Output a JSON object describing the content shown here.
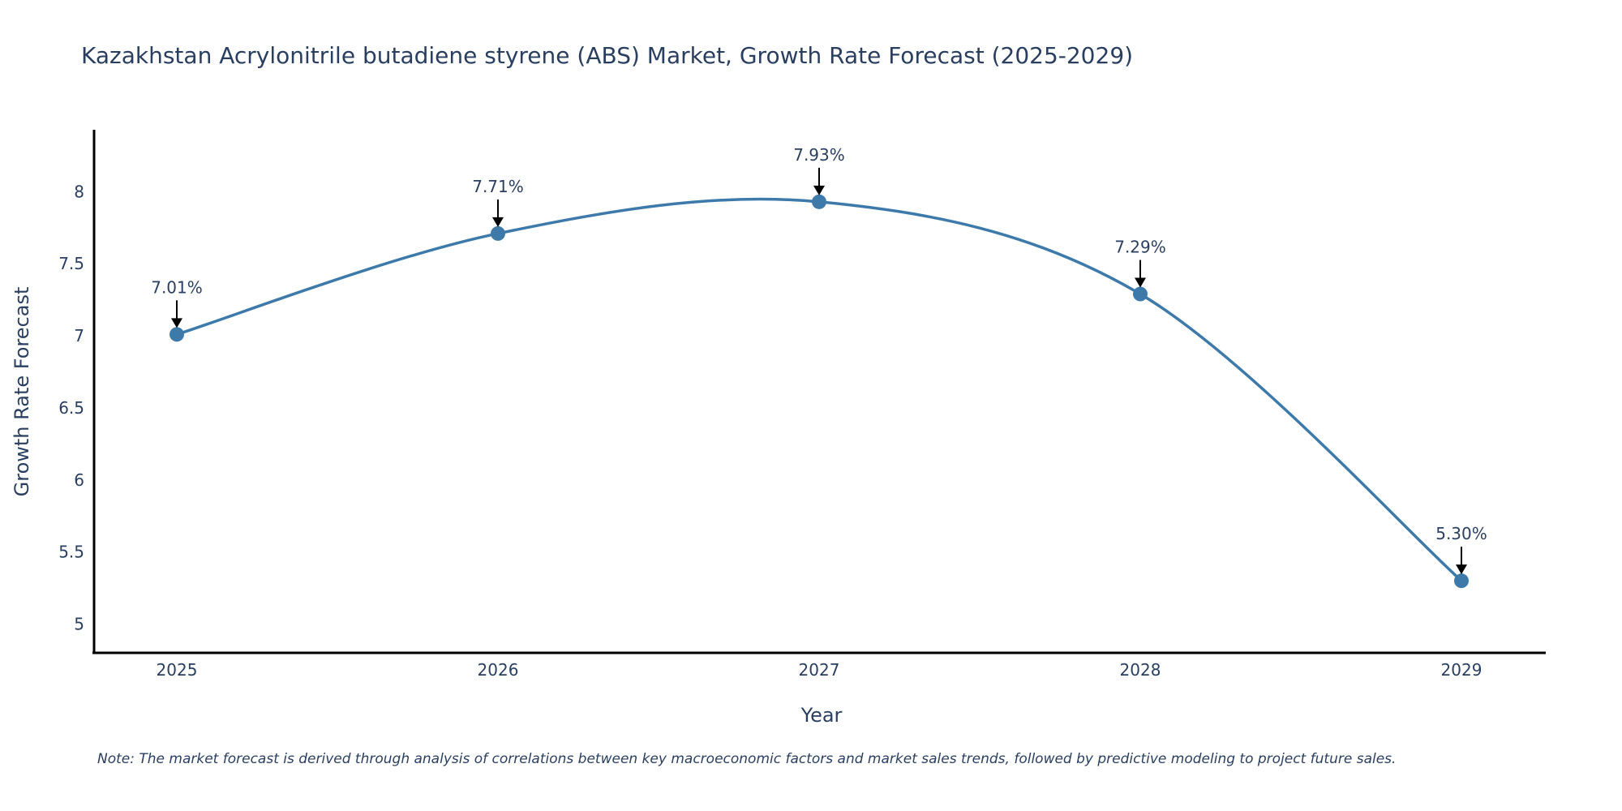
{
  "chart_data": {
    "type": "line",
    "title": "Kazakhstan Acrylonitrile butadiene styrene (ABS) Market, Growth Rate Forecast (2025-2029)",
    "xlabel": "Year",
    "ylabel": "Growth Rate Forecast",
    "categories": [
      "2025",
      "2026",
      "2027",
      "2028",
      "2029"
    ],
    "series": [
      {
        "name": "Growth Rate Forecast",
        "values": [
          7.01,
          7.71,
          7.93,
          7.29,
          5.3
        ]
      }
    ],
    "annotations": [
      "7.01%",
      "7.71%",
      "7.93%",
      "7.29%",
      "5.30%"
    ],
    "yticks": [
      "5",
      "5.5",
      "6",
      "6.5",
      "7",
      "7.5",
      "8"
    ],
    "ylim": [
      4.8,
      8.43
    ],
    "grid": false,
    "line_color": "#3d7aaa",
    "marker_color": "#3d7aaa",
    "note": "Note: The market forecast is derived through analysis of correlations between key macroeconomic factors and market sales trends, followed by predictive modeling to project future sales."
  }
}
